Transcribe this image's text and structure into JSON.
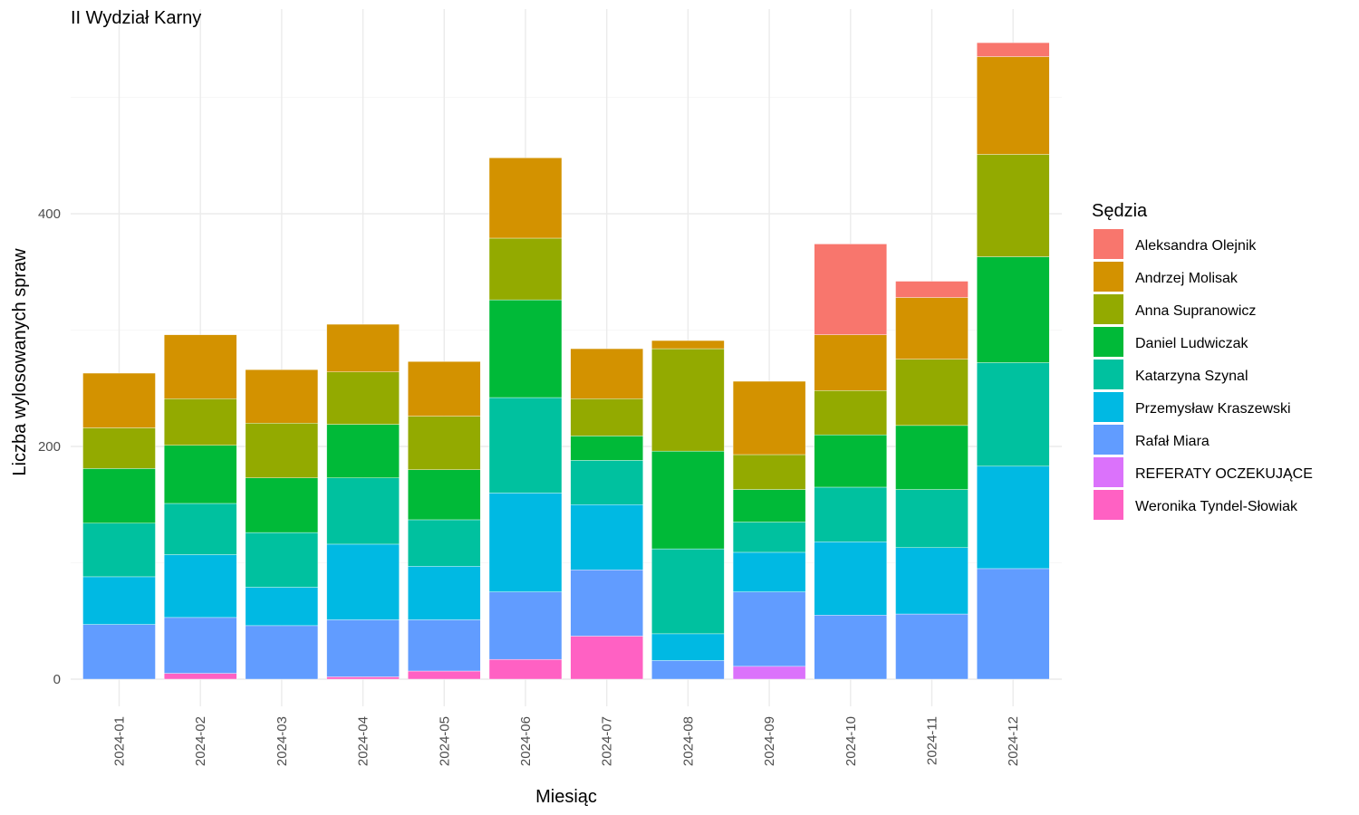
{
  "chart_data": {
    "type": "bar",
    "stacked": true,
    "title": "II Wydział Karny",
    "xlabel": "Miesiąc",
    "ylabel": "Liczba wylosowanych spraw",
    "ylim": [
      0,
      550
    ],
    "yticks": [
      0,
      200,
      400
    ],
    "grid": true,
    "legend_title": "Sędzia",
    "legend_position": "right",
    "categories": [
      "2024-01",
      "2024-02",
      "2024-03",
      "2024-04",
      "2024-05",
      "2024-06",
      "2024-07",
      "2024-08",
      "2024-09",
      "2024-10",
      "2024-11",
      "2024-12"
    ],
    "series": [
      {
        "name": "Weronika Tyndel-Słowiak",
        "color": "#FF61C3",
        "values": [
          0,
          5,
          0,
          2,
          7,
          17,
          37,
          0,
          0,
          0,
          0,
          0
        ]
      },
      {
        "name": "REFERATY OCZEKUJĄCE",
        "color": "#DB72FB",
        "values": [
          0,
          0,
          0,
          0,
          0,
          0,
          0,
          0,
          11,
          0,
          0,
          0
        ]
      },
      {
        "name": "Rafał Miara",
        "color": "#619CFF",
        "values": [
          47,
          48,
          46,
          49,
          44,
          58,
          57,
          16,
          64,
          55,
          56,
          95
        ]
      },
      {
        "name": "Przemysław Kraszewski",
        "color": "#00B9E3",
        "values": [
          41,
          54,
          33,
          65,
          46,
          85,
          56,
          23,
          34,
          63,
          57,
          88
        ]
      },
      {
        "name": "Katarzyna Szynal",
        "color": "#00C19F",
        "values": [
          46,
          44,
          47,
          57,
          40,
          82,
          38,
          73,
          26,
          47,
          50,
          89
        ]
      },
      {
        "name": "Daniel Ludwiczak",
        "color": "#00BA38",
        "values": [
          47,
          50,
          47,
          46,
          43,
          84,
          21,
          84,
          28,
          45,
          55,
          91
        ]
      },
      {
        "name": "Anna Supranowicz",
        "color": "#93AA00",
        "values": [
          35,
          40,
          47,
          45,
          46,
          53,
          32,
          88,
          30,
          38,
          57,
          88
        ]
      },
      {
        "name": "Andrzej Molisak",
        "color": "#D39200",
        "values": [
          47,
          55,
          46,
          41,
          47,
          69,
          43,
          7,
          63,
          48,
          53,
          84
        ]
      },
      {
        "name": "Aleksandra Olejnik",
        "color": "#F8766D",
        "values": [
          0,
          0,
          0,
          0,
          0,
          0,
          0,
          0,
          0,
          78,
          14,
          12
        ]
      }
    ],
    "legend_order": [
      "Aleksandra Olejnik",
      "Andrzej Molisak",
      "Anna Supranowicz",
      "Daniel Ludwiczak",
      "Katarzyna Szynal",
      "Przemysław Kraszewski",
      "Rafał Miara",
      "REFERATY OCZEKUJĄCE",
      "Weronika Tyndel-Słowiak"
    ]
  }
}
